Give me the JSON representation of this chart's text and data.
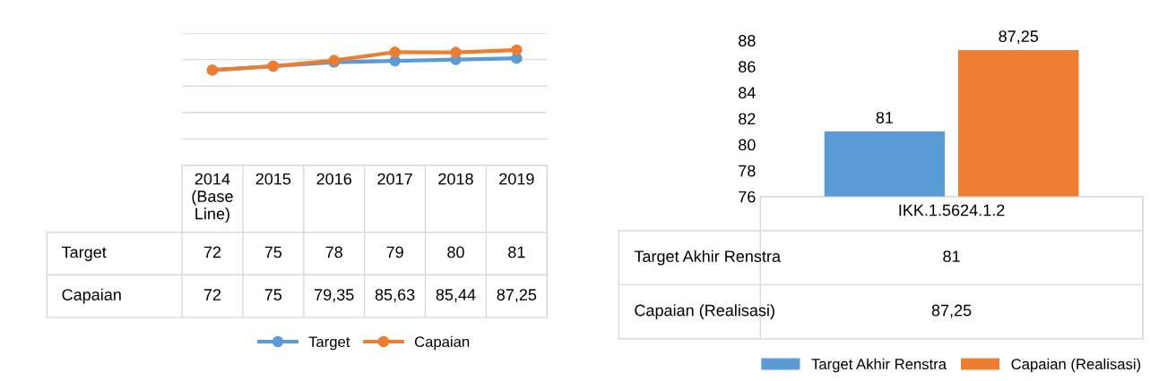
{
  "chart_data": [
    {
      "type": "line",
      "categories": [
        "2014\n(Base\nLine)",
        "2015",
        "2016",
        "2017",
        "2018",
        "2019"
      ],
      "ylim": [
        0,
        100
      ],
      "yticks": [
        {
          "value": 20,
          "label": null
        },
        {
          "value": 40,
          "label": null
        },
        {
          "value": 60,
          "label": null
        },
        {
          "value": 80,
          "label": null
        },
        {
          "value": 100,
          "label": null
        }
      ],
      "grid": "y",
      "marker": "circle",
      "legend": "bottom",
      "series": [
        {
          "name": "Target",
          "color": "#5b9bd5",
          "values": [
            72,
            75,
            78,
            79,
            80,
            81
          ],
          "value_labels": [
            "72",
            "75",
            "78",
            "79",
            "80",
            "81"
          ]
        },
        {
          "name": "Capaian",
          "color": "#ed7d31",
          "values": [
            72,
            75,
            79.35,
            85.63,
            85.44,
            87.25
          ],
          "value_labels": [
            "72",
            "75",
            "79,35",
            "85,63",
            "85,44",
            "87,25"
          ]
        }
      ]
    },
    {
      "type": "bar",
      "categories": [
        "IKK.1.5624.1.2"
      ],
      "ylim": [
        76,
        88
      ],
      "yticks": [
        76,
        78,
        80,
        82,
        84,
        86,
        88
      ],
      "legend": "bottom",
      "series": [
        {
          "name": "Target Akhir Renstra",
          "color": "#5b9bd5",
          "values": [
            81
          ],
          "value_labels": [
            "81"
          ]
        },
        {
          "name": "Capaian (Realisasi)",
          "color": "#ed7d31",
          "values": [
            87.25
          ],
          "value_labels": [
            "87,25"
          ]
        }
      ]
    }
  ]
}
